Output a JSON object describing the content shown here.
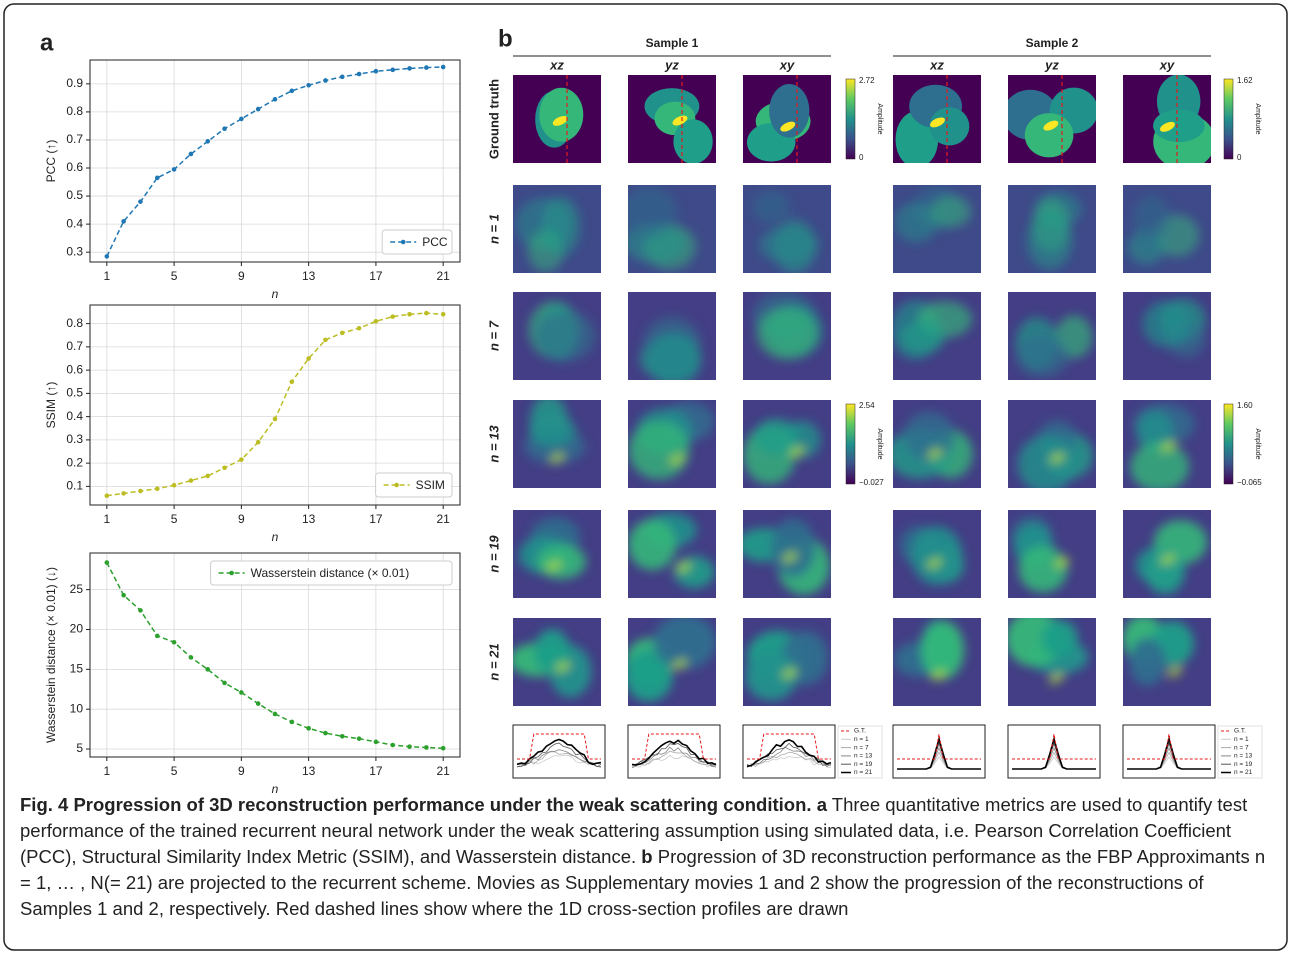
{
  "panel_labels": [
    "a",
    "b"
  ],
  "chart_data": [
    {
      "type": "line",
      "ylabel": "PCC (↑)",
      "xlabel": "n",
      "x": [
        1,
        2,
        3,
        4,
        5,
        6,
        7,
        8,
        9,
        10,
        11,
        12,
        13,
        14,
        15,
        16,
        17,
        18,
        19,
        20,
        21
      ],
      "series": [
        {
          "name": "PCC",
          "color": "#1f77b4",
          "values": [
            0.285,
            0.41,
            0.48,
            0.565,
            0.595,
            0.65,
            0.695,
            0.74,
            0.775,
            0.81,
            0.845,
            0.875,
            0.895,
            0.912,
            0.925,
            0.935,
            0.945,
            0.95,
            0.955,
            0.958,
            0.96
          ]
        }
      ],
      "xlim": [
        0,
        22
      ],
      "ylim": [
        0.265,
        0.985
      ],
      "xticks": [
        1,
        5,
        9,
        13,
        17,
        21
      ],
      "yticks": [
        0.3,
        0.4,
        0.5,
        0.6,
        0.7,
        0.8,
        0.9
      ],
      "grid": true,
      "legend": "lower-right"
    },
    {
      "type": "line",
      "ylabel": "SSIM (↑)",
      "xlabel": "n",
      "x": [
        1,
        2,
        3,
        4,
        5,
        6,
        7,
        8,
        9,
        10,
        11,
        12,
        13,
        14,
        15,
        16,
        17,
        18,
        19,
        20,
        21
      ],
      "series": [
        {
          "name": "SSIM",
          "color": "#bcbd22",
          "values": [
            0.06,
            0.07,
            0.08,
            0.09,
            0.105,
            0.125,
            0.145,
            0.18,
            0.215,
            0.29,
            0.39,
            0.55,
            0.65,
            0.73,
            0.76,
            0.78,
            0.81,
            0.83,
            0.84,
            0.845,
            0.84
          ]
        }
      ],
      "xlim": [
        0,
        22
      ],
      "ylim": [
        0.02,
        0.88
      ],
      "xticks": [
        1,
        5,
        9,
        13,
        17,
        21
      ],
      "yticks": [
        0.1,
        0.2,
        0.3,
        0.4,
        0.5,
        0.6,
        0.7,
        0.8
      ],
      "grid": true,
      "legend": "lower-right"
    },
    {
      "type": "line",
      "ylabel": "Wasserstein distance (× 0.01) (↓)",
      "xlabel": "n",
      "x": [
        1,
        2,
        3,
        4,
        5,
        6,
        7,
        8,
        9,
        10,
        11,
        12,
        13,
        14,
        15,
        16,
        17,
        18,
        19,
        20,
        21
      ],
      "series": [
        {
          "name": "Wasserstein distance (× 0.01)",
          "color": "#2ca02c",
          "values": [
            28.4,
            24.3,
            22.4,
            19.2,
            18.4,
            16.5,
            15.0,
            13.3,
            12.1,
            10.7,
            9.4,
            8.4,
            7.6,
            7.0,
            6.6,
            6.3,
            5.9,
            5.5,
            5.3,
            5.2,
            5.1
          ]
        }
      ],
      "xlim": [
        0,
        22
      ],
      "ylim": [
        4,
        29.6
      ],
      "xticks": [
        1,
        5,
        9,
        13,
        17,
        21
      ],
      "yticks": [
        5,
        10,
        15,
        20,
        25
      ],
      "grid": true,
      "legend": "upper-right"
    }
  ],
  "panel_b": {
    "sample_titles": [
      "Sample 1",
      "Sample 2"
    ],
    "column_labels": [
      "xz",
      "yz",
      "xy",
      "xz",
      "yz",
      "xy"
    ],
    "row_labels": [
      "Ground truth",
      "n = 1",
      "n = 7",
      "n = 13",
      "n = 19",
      "n = 21"
    ],
    "colorbars": [
      {
        "max": "2.72",
        "min": "0",
        "label": "Amplitude"
      },
      {
        "max": "1.62",
        "min": "0",
        "label": "Amplitude"
      },
      {
        "max": "2.54",
        "min": "−0.027",
        "label": "Amplitude"
      },
      {
        "max": "1.60",
        "min": "−0.065",
        "label": "Amplitude"
      }
    ],
    "profile_legend": [
      "G.T.",
      "n = 1",
      "n = 7",
      "n = 13",
      "n = 19",
      "n = 21"
    ]
  },
  "caption": {
    "title": "Fig. 4 Progression of 3D reconstruction performance under the weak scattering condition.",
    "label_a": "a",
    "text_a": "Three quantitative metrics are used to quantify test performance of the trained recurrent neural network under the weak scattering assumption using simulated data, i.e. Pearson Correlation Coefficient (PCC), Structural Similarity Index Metric (SSIM), and Wasserstein distance.",
    "label_b": "b",
    "text_b": "Progression of 3D reconstruction performance as the FBP Approximants n = 1, … , N(= 21) are projected to the recurrent scheme. Movies as Supplementary movies 1 and 2 show the progression of the reconstructions of Samples 1 and 2, respectively. Red dashed lines show where the 1D cross-section profiles are drawn"
  }
}
